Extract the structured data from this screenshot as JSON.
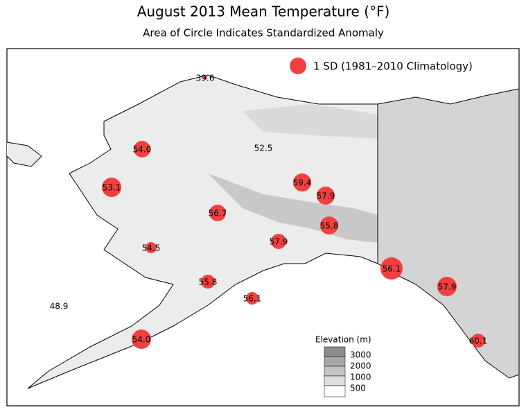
{
  "header": {
    "title": "August 2013 Mean Temperature (°F)",
    "subtitle": "Area of Circle Indicates Standardized Anomaly"
  },
  "legend": {
    "label": "1 SD (1981–2010 Climatology)"
  },
  "elevation_legend": {
    "title": "Elevation (m)",
    "levels": [
      "3000",
      "2000",
      "1000",
      "500"
    ]
  },
  "stations": [
    {
      "label": "39.6"
    },
    {
      "label": "54.0"
    },
    {
      "label": "52.5"
    },
    {
      "label": "53.1"
    },
    {
      "label": "59.4"
    },
    {
      "label": "57.9"
    },
    {
      "label": "56.7"
    },
    {
      "label": "55.8"
    },
    {
      "label": "57.9"
    },
    {
      "label": "54.5"
    },
    {
      "label": "56.1"
    },
    {
      "label": "55.8"
    },
    {
      "label": "57.9"
    },
    {
      "label": "56.1"
    },
    {
      "label": "48.9"
    },
    {
      "label": "54.0"
    },
    {
      "label": "60.1"
    }
  ]
}
